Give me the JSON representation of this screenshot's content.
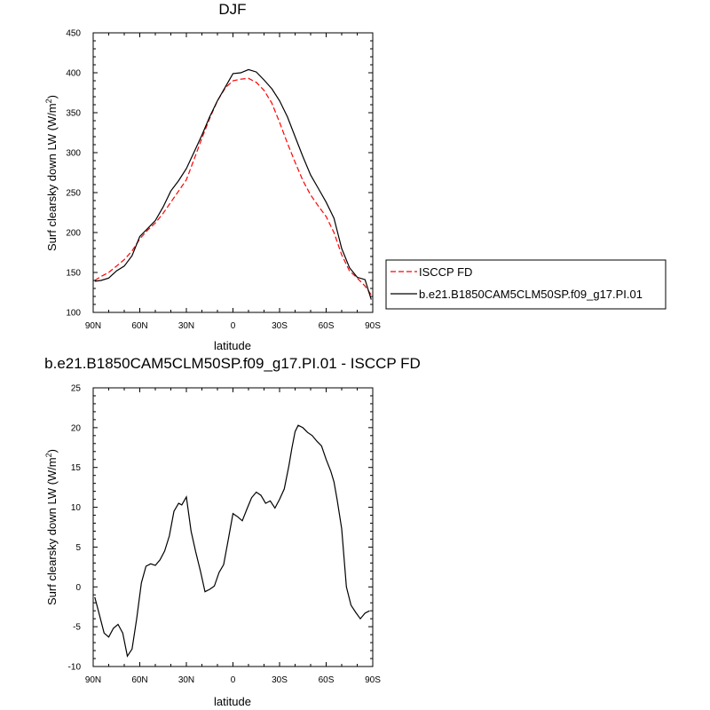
{
  "chart_data": [
    {
      "type": "line",
      "title": "DJF",
      "xlabel": "latitude",
      "ylabel": "Surf clearsky down LW (W/m",
      "ylabel_sup": "2",
      "ylabel_close": ")",
      "xlim": [
        90,
        -90
      ],
      "ylim": [
        100,
        450
      ],
      "xticks": [
        90,
        60,
        30,
        0,
        -30,
        -60,
        -90
      ],
      "xtick_labels": [
        "90N",
        "60N",
        "30N",
        "0",
        "30S",
        "60S",
        "90S"
      ],
      "yticks": [
        100,
        150,
        200,
        250,
        300,
        350,
        400,
        450
      ],
      "ytick_labels": [
        "100",
        "150",
        "200",
        "250",
        "300",
        "350",
        "400",
        "450"
      ],
      "legend_position": "right",
      "series": [
        {
          "name": "ISCCP FD",
          "color": "#ff0000",
          "dash": "dashed",
          "x": [
            89,
            85,
            80,
            75,
            70,
            65,
            60,
            55,
            50,
            45,
            40,
            35,
            30,
            25,
            20,
            15,
            10,
            5,
            0,
            -5,
            -10,
            -15,
            -20,
            -25,
            -30,
            -35,
            -40,
            -45,
            -50,
            -55,
            -60,
            -65,
            -70,
            -75,
            -80,
            -85,
            -89
          ],
          "y": [
            140,
            145,
            150,
            158,
            166,
            177,
            192,
            203,
            212,
            224,
            238,
            252,
            266,
            292,
            318,
            343,
            365,
            381,
            390,
            392,
            393,
            388,
            378,
            362,
            338,
            312,
            288,
            265,
            247,
            233,
            220,
            200,
            172,
            152,
            143,
            133,
            122
          ]
        },
        {
          "name": "b.e21.B1850CAM5CLM50SP.f09_g17.PI.01",
          "color": "#000000",
          "dash": "solid",
          "x": [
            89,
            85,
            80,
            75,
            70,
            65,
            60,
            55,
            50,
            45,
            40,
            35,
            30,
            25,
            20,
            15,
            10,
            5,
            0,
            -5,
            -10,
            -15,
            -20,
            -25,
            -30,
            -35,
            -40,
            -45,
            -50,
            -55,
            -60,
            -65,
            -70,
            -75,
            -80,
            -85,
            -89
          ],
          "y": [
            139,
            140,
            143,
            152,
            158,
            171,
            195,
            205,
            215,
            232,
            252,
            265,
            280,
            301,
            322,
            345,
            365,
            382,
            399,
            400,
            404,
            401,
            391,
            380,
            365,
            345,
            320,
            295,
            272,
            255,
            238,
            218,
            180,
            156,
            144,
            141,
            116
          ]
        }
      ]
    },
    {
      "type": "line",
      "title": "b.e21.B1850CAM5CLM50SP.f09_g17.PI.01 - ISCCP FD",
      "xlabel": "latitude",
      "ylabel": "Surf clearsky down LW (W/m",
      "ylabel_sup": "2",
      "ylabel_close": ")",
      "xlim": [
        90,
        -90
      ],
      "ylim": [
        -10,
        25
      ],
      "xticks": [
        90,
        60,
        30,
        0,
        -30,
        -60,
        -90
      ],
      "xtick_labels": [
        "90N",
        "60N",
        "30N",
        "0",
        "30S",
        "60S",
        "90S"
      ],
      "yticks": [
        -10,
        -5,
        0,
        5,
        10,
        15,
        20,
        25
      ],
      "ytick_labels": [
        "-10",
        "-5",
        "0",
        "5",
        "10",
        "15",
        "20",
        "25"
      ],
      "series": [
        {
          "color": "#000000",
          "dash": "solid",
          "x": [
            89,
            86,
            83,
            80,
            77,
            74,
            71,
            68,
            65,
            62,
            59,
            56,
            53,
            50,
            47,
            44,
            41,
            38,
            35,
            33,
            30,
            27,
            24,
            21,
            18,
            15,
            12,
            9,
            6,
            3,
            0,
            -3,
            -6,
            -9,
            -12,
            -15,
            -18,
            -21,
            -24,
            -27,
            -30,
            -33,
            -36,
            -38,
            -40,
            -42,
            -45,
            -48,
            -51,
            -54,
            -57,
            -60,
            -63,
            -65,
            -67,
            -70,
            -73,
            -76,
            -79,
            -82,
            -85,
            -88
          ],
          "y": [
            -1.3,
            -3.5,
            -5.8,
            -6.3,
            -5.2,
            -4.7,
            -5.8,
            -8.7,
            -7.8,
            -4.0,
            0.5,
            2.6,
            2.9,
            2.7,
            3.4,
            4.5,
            6.4,
            9.5,
            10.5,
            10.3,
            11.3,
            7.0,
            4.4,
            2.0,
            -0.6,
            -0.3,
            0.1,
            1.8,
            2.8,
            6.0,
            9.2,
            8.8,
            8.3,
            9.8,
            11.2,
            11.9,
            11.5,
            10.5,
            10.8,
            9.9,
            11.0,
            12.3,
            15.2,
            17.5,
            19.5,
            20.3,
            20.0,
            19.4,
            19.0,
            18.3,
            17.7,
            16.0,
            14.5,
            13.2,
            11.0,
            7.3,
            0.0,
            -2.3,
            -3.2,
            -4.0,
            -3.3,
            -3.0
          ]
        }
      ]
    }
  ]
}
